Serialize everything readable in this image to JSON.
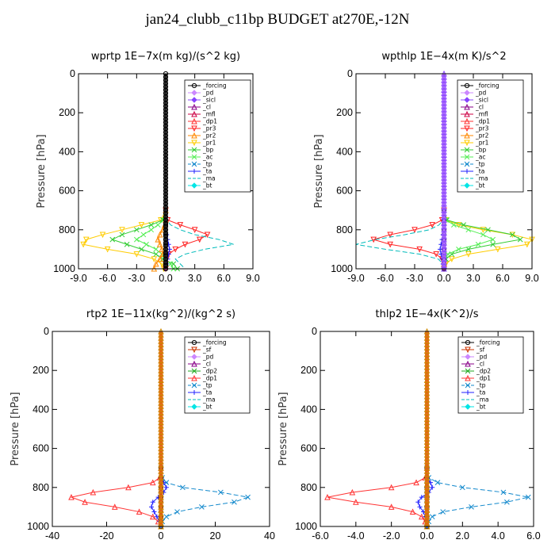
{
  "title": "jan24_clubb_c11bp  BUDGET at270E,-12N",
  "colors": {
    "_forcing": "#000000",
    "_pd": "#cc88ff",
    "_sicl": "#8844ff",
    "_cl": "#880088",
    "_mfl": "#cc0044",
    "_dp1": "#ff3333",
    "_pr3": "#ff2222",
    "_pr2": "#ff8800",
    "_pr1": "#ffcc00",
    "_bp": "#33cc33",
    "_ac": "#55ee55",
    "_tp": "#1188cc",
    "_ta": "#2222ff",
    "_ma": "#00bbbb",
    "_bt": "#00e5e5",
    "_sf": "#cc3300",
    "_dp2": "#22aa22"
  },
  "chart_data": [
    {
      "type": "line",
      "title": "wprtp  1E−7x(m kg)/(s^2 kg)",
      "ylabel": "Pressure [hPa]",
      "xlim": [
        -9,
        9
      ],
      "ylim": [
        1000,
        0
      ],
      "xticks": [
        "-9.0",
        "-6.0",
        "-3.0",
        "0.0",
        "3.0",
        "6.0",
        "9.0"
      ],
      "yticks": [
        "0",
        "200",
        "400",
        "600",
        "800",
        "1000"
      ],
      "legend": [
        "_forcing",
        "_pd",
        "_sicl",
        "_cl",
        "_mfl",
        "_dp1",
        "_pr3",
        "_pr2",
        "_pr1",
        "_bp",
        "_ac",
        "_tp",
        "_ta",
        "_ma",
        "_bt"
      ],
      "y": [
        0,
        100,
        200,
        300,
        400,
        500,
        600,
        700,
        750,
        775,
        800,
        825,
        850,
        875,
        900,
        925,
        950,
        975,
        1000
      ],
      "series": [
        {
          "name": "_pr1",
          "values": [
            0,
            0,
            0,
            0,
            0,
            0,
            0,
            0,
            -0.5,
            -2.5,
            -4.5,
            -6.5,
            -8.2,
            -8.5,
            -6.0,
            -3.0,
            -1.2,
            -0.4,
            -0.2
          ]
        },
        {
          "name": "_bp",
          "values": [
            0,
            0,
            0,
            0,
            0,
            0,
            0,
            0,
            -0.3,
            -1.5,
            -3.0,
            -4.5,
            -5.5,
            -4.0,
            -2.5,
            -1.0,
            -0.3,
            0.8,
            1.2
          ]
        },
        {
          "name": "_ac",
          "values": [
            0,
            0,
            0,
            0,
            0,
            0,
            0,
            0,
            -0.2,
            -0.8,
            -1.5,
            -2.3,
            -3.0,
            -2.0,
            -1.0,
            -0.4,
            -0.1,
            0.5,
            0.8
          ]
        },
        {
          "name": "_pr3",
          "values": [
            0,
            0,
            0,
            0,
            0,
            0,
            0,
            0,
            0.2,
            1.5,
            3.0,
            4.3,
            3.5,
            2.0,
            1.0,
            0.3,
            0.1,
            0,
            0
          ]
        },
        {
          "name": "_ma",
          "values": [
            0,
            0,
            0,
            0,
            0,
            0,
            0,
            0,
            0.1,
            0.5,
            1.5,
            3.0,
            5.5,
            7.0,
            4.0,
            2.0,
            1.0,
            1.5,
            2.0
          ]
        },
        {
          "name": "_pr2",
          "values": [
            0,
            0,
            0,
            0,
            0,
            0,
            0,
            0,
            0,
            -0.1,
            -0.3,
            -0.6,
            -0.8,
            -0.6,
            -0.4,
            -0.3,
            -0.6,
            -1.0,
            -1.2
          ]
        },
        {
          "name": "_ta",
          "values": [
            0,
            0,
            0,
            0,
            0,
            0,
            0,
            0,
            0,
            0,
            0,
            0.1,
            0.2,
            0.3,
            0.4,
            0.3,
            0.2,
            0.1,
            0
          ]
        },
        {
          "name": "_forcing",
          "values": [
            0,
            0,
            0,
            0,
            0,
            0,
            0,
            0,
            0,
            0,
            0,
            0,
            0,
            0,
            0,
            0,
            0,
            0,
            0
          ]
        }
      ]
    },
    {
      "type": "line",
      "title": "wpthlp  1E−4x(m K)/s^2",
      "ylabel": "Pressure [hPa]",
      "xlim": [
        -9,
        9
      ],
      "ylim": [
        1000,
        0
      ],
      "xticks": [
        "-9.0",
        "-6.0",
        "-3.0",
        "0.0",
        "3.0",
        "6.0",
        "9.0"
      ],
      "yticks": [
        "0",
        "200",
        "400",
        "600",
        "800",
        "1000"
      ],
      "legend": [
        "_forcing",
        "_pd",
        "_sicl",
        "_cl",
        "_mfl",
        "_dp1",
        "_pr3",
        "_pr2",
        "_pr1",
        "_bp",
        "_ac",
        "_tp",
        "_ta",
        "_ma",
        "_bt"
      ],
      "y": [
        0,
        100,
        200,
        300,
        400,
        500,
        600,
        700,
        750,
        775,
        800,
        825,
        850,
        875,
        900,
        925,
        950,
        975,
        1000
      ],
      "series": [
        {
          "name": "_pr1",
          "values": [
            0,
            0,
            0,
            0,
            0,
            0,
            0,
            0,
            0.2,
            1.5,
            4.0,
            7.0,
            9.0,
            8.5,
            5.5,
            2.5,
            0.8,
            0.2,
            0
          ]
        },
        {
          "name": "_bp",
          "values": [
            0,
            0,
            0,
            0,
            0,
            0,
            0,
            0,
            0.3,
            2.0,
            4.5,
            7.0,
            7.8,
            5.0,
            2.5,
            0.8,
            0.2,
            0,
            0
          ]
        },
        {
          "name": "_ac",
          "values": [
            0,
            0,
            0,
            0,
            0,
            0,
            0,
            0,
            0.2,
            1.0,
            2.5,
            4.0,
            5.0,
            3.5,
            1.5,
            0.4,
            0.1,
            0,
            0
          ]
        },
        {
          "name": "_pr3",
          "values": [
            0,
            0,
            0,
            0,
            0,
            0,
            0,
            0,
            -0.2,
            -1.2,
            -3.0,
            -5.5,
            -7.2,
            -5.5,
            -2.5,
            -0.8,
            -0.2,
            0,
            0
          ]
        },
        {
          "name": "_ma",
          "values": [
            0,
            0,
            0,
            0,
            0,
            0,
            0,
            0,
            -0.1,
            -0.5,
            -1.5,
            -4.0,
            -7.0,
            -9.0,
            -6.0,
            -2.5,
            -0.6,
            -0.1,
            0
          ]
        },
        {
          "name": "_ta",
          "values": [
            0,
            0,
            0,
            0,
            0,
            0,
            0,
            0,
            0,
            0,
            0,
            -0.1,
            -0.2,
            -0.3,
            -0.4,
            -0.3,
            -0.2,
            -0.1,
            0
          ]
        },
        {
          "name": "_forcing",
          "values": [
            0,
            0,
            0,
            0,
            0,
            0,
            0,
            0,
            0,
            0,
            0,
            0,
            0,
            0,
            0,
            0,
            0,
            0,
            0
          ]
        }
      ]
    },
    {
      "type": "line",
      "title": "rtp2  1E−11x(kg^2)/(kg^2 s)",
      "ylabel": "Pressure [hPa]",
      "xlim": [
        -40,
        40
      ],
      "ylim": [
        1000,
        0
      ],
      "xticks": [
        "-40",
        "-20",
        "0",
        "20",
        "40"
      ],
      "yticks": [
        "0",
        "200",
        "400",
        "600",
        "800",
        "1000"
      ],
      "legend": [
        "_forcing",
        "_sf",
        "_pd",
        "_cl",
        "_dp2",
        "_dp1",
        "_tp",
        "_ta",
        "_ma",
        "_bt"
      ],
      "y": [
        0,
        100,
        200,
        300,
        400,
        500,
        600,
        700,
        750,
        775,
        800,
        825,
        850,
        875,
        900,
        925,
        950,
        975,
        1000
      ],
      "series": [
        {
          "name": "_dp1",
          "values": [
            0,
            0,
            0,
            0,
            0,
            0,
            0,
            0,
            -0.5,
            -3.0,
            -12.0,
            -25.0,
            -33.0,
            -28.0,
            -17.0,
            -8.0,
            -3.0,
            -1.0,
            0
          ]
        },
        {
          "name": "_tp",
          "values": [
            0,
            0,
            0,
            0,
            0,
            0,
            0,
            0,
            0.5,
            2.0,
            8.0,
            22.0,
            32.0,
            27.0,
            15.0,
            6.0,
            2.0,
            0.5,
            0
          ]
        },
        {
          "name": "_ta",
          "values": [
            0,
            0,
            0,
            0,
            0,
            0,
            0,
            0,
            0.2,
            1.0,
            2.0,
            1.0,
            -1.0,
            -3.0,
            -3.5,
            -2.5,
            -1.5,
            -0.5,
            0
          ]
        },
        {
          "name": "_forcing",
          "values": [
            0,
            0,
            0,
            0,
            0,
            0,
            0,
            0,
            0,
            0,
            0,
            0,
            0,
            0,
            0,
            0,
            0,
            0,
            0
          ]
        }
      ]
    },
    {
      "type": "line",
      "title": "thlp2  1E−4x(K^2)/s",
      "ylabel": "Pressure [hPa]",
      "xlim": [
        -6,
        6
      ],
      "ylim": [
        1000,
        0
      ],
      "xticks": [
        "-6.0",
        "-4.0",
        "-2.0",
        "0.0",
        "2.0",
        "4.0",
        "6.0"
      ],
      "yticks": [
        "0",
        "200",
        "400",
        "600",
        "800",
        "1000"
      ],
      "legend": [
        "_forcing",
        "_sf",
        "_pd",
        "_cl",
        "_dp2",
        "_dp1",
        "_tp",
        "_ta",
        "_ma",
        "_bt"
      ],
      "y": [
        0,
        100,
        200,
        300,
        400,
        500,
        600,
        700,
        750,
        775,
        800,
        825,
        850,
        875,
        900,
        925,
        950,
        975,
        1000
      ],
      "series": [
        {
          "name": "_dp1",
          "values": [
            0,
            0,
            0,
            0,
            0,
            0,
            0,
            0,
            -0.1,
            -0.6,
            -2.0,
            -4.2,
            -5.6,
            -4.0,
            -2.0,
            -0.8,
            -0.3,
            -0.1,
            0
          ]
        },
        {
          "name": "_tp",
          "values": [
            0,
            0,
            0,
            0,
            0,
            0,
            0,
            0,
            0.1,
            0.6,
            2.0,
            4.3,
            5.7,
            4.5,
            2.5,
            0.9,
            0.3,
            0.1,
            0
          ]
        },
        {
          "name": "_ta",
          "values": [
            0,
            0,
            0,
            0,
            0,
            0,
            0,
            0,
            0,
            0.2,
            0.3,
            0.1,
            -0.3,
            -0.5,
            -0.4,
            -0.2,
            -0.1,
            0,
            0
          ]
        },
        {
          "name": "_forcing",
          "values": [
            0,
            0,
            0,
            0,
            0,
            0,
            0,
            0,
            0,
            0,
            0,
            0,
            0,
            0,
            0,
            0,
            0,
            0,
            0
          ]
        }
      ]
    }
  ]
}
